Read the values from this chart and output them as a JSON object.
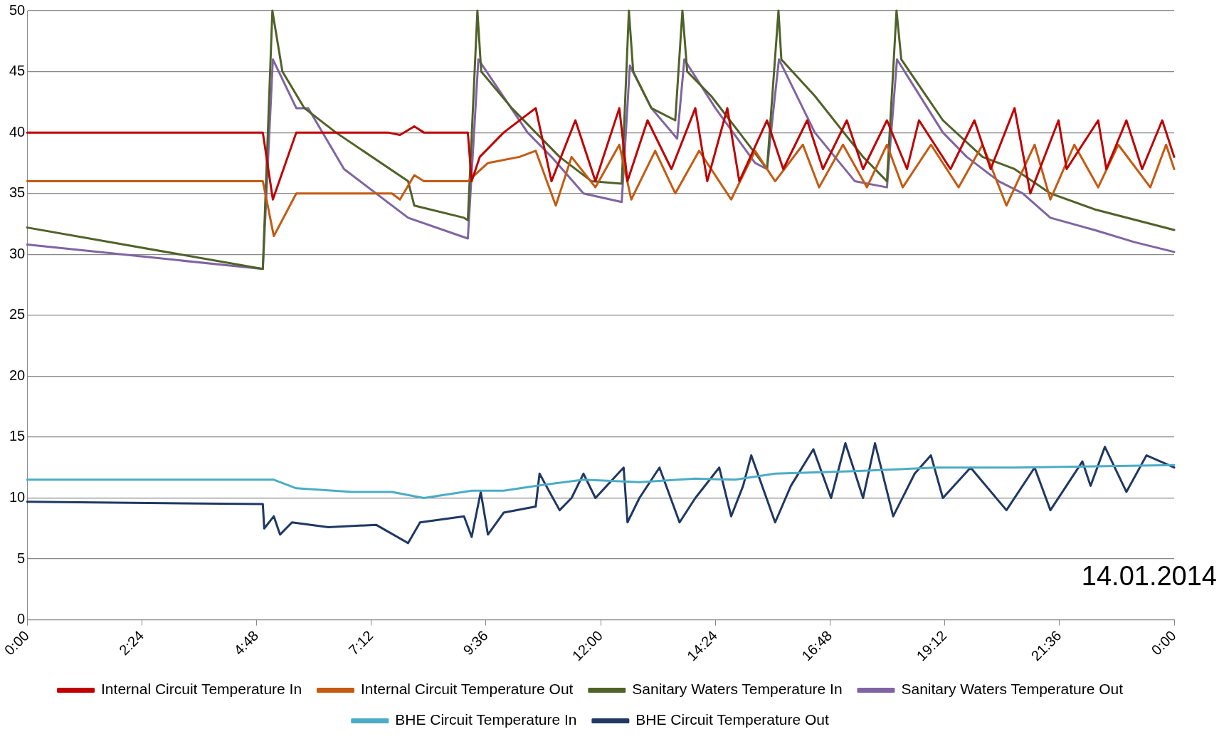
{
  "chart_data": {
    "type": "line",
    "annotations": [
      "14.01.2014"
    ],
    "xlim": [
      0,
      24
    ],
    "xticks": [
      {
        "value": 0,
        "label": "0:00"
      },
      {
        "value": 2.4,
        "label": "2:24"
      },
      {
        "value": 4.8,
        "label": "4:48"
      },
      {
        "value": 7.2,
        "label": "7:12"
      },
      {
        "value": 9.6,
        "label": "9:36"
      },
      {
        "value": 12,
        "label": "12:00"
      },
      {
        "value": 14.4,
        "label": "14:24"
      },
      {
        "value": 16.8,
        "label": "16:48"
      },
      {
        "value": 19.2,
        "label": "19:12"
      },
      {
        "value": 21.6,
        "label": "21:36"
      },
      {
        "value": 24,
        "label": "0:00"
      }
    ],
    "ylim": [
      0,
      50
    ],
    "yticks": [
      0,
      5,
      10,
      15,
      20,
      25,
      30,
      35,
      40,
      45,
      50
    ],
    "grid": "y",
    "legend": "bottom",
    "series": [
      {
        "name": "Internal Circuit Temperature In",
        "color": "#c00000",
        "x": [
          0,
          4.93,
          5.14,
          5.63,
          7.55,
          7.8,
          8.1,
          8.3,
          9.22,
          9.3,
          9.47,
          9.97,
          10.64,
          10.97,
          11.47,
          11.89,
          12.39,
          12.56,
          12.98,
          13.48,
          13.98,
          14.23,
          14.65,
          14.9,
          15.48,
          15.82,
          16.32,
          16.65,
          17.15,
          17.49,
          17.99,
          18.41,
          18.66,
          19.32,
          19.82,
          20.16,
          20.66,
          20.99,
          21.58,
          21.75,
          22.41,
          22.58,
          23,
          23.33,
          23.75,
          24
        ],
        "values": [
          40,
          40,
          34.5,
          40,
          40,
          39.8,
          40.5,
          40,
          40,
          36,
          38,
          40,
          42,
          36,
          41,
          36,
          42,
          36,
          41,
          37,
          42,
          36,
          42,
          36,
          41,
          37,
          41,
          37,
          41,
          37,
          41,
          37,
          41,
          37,
          41,
          37,
          42,
          35,
          41,
          37,
          41,
          37,
          41,
          37,
          41,
          38
        ]
      },
      {
        "name": "Internal Circuit Temperature Out",
        "color": "#c55a11",
        "x": [
          0,
          4.93,
          5.16,
          5.63,
          7.63,
          7.8,
          8.1,
          8.3,
          9.22,
          9.64,
          10.3,
          10.64,
          11.06,
          11.39,
          11.89,
          12.39,
          12.64,
          13.14,
          13.56,
          14.06,
          14.73,
          15.23,
          15.65,
          16.23,
          16.57,
          17.07,
          17.57,
          17.99,
          18.32,
          18.91,
          19.49,
          19.99,
          20.49,
          21.08,
          21.41,
          21.91,
          22.41,
          22.83,
          23.5,
          23.83,
          24
        ],
        "values": [
          36,
          36,
          31.5,
          35,
          35,
          34.5,
          36.5,
          36,
          36,
          37.5,
          38,
          38.5,
          34,
          38,
          35.5,
          39,
          34.5,
          38.5,
          35,
          38.5,
          34.5,
          38.5,
          36,
          39,
          35.5,
          39,
          35.5,
          39,
          35.5,
          39,
          35.5,
          39,
          34,
          39,
          34.5,
          39,
          35.5,
          39,
          35.5,
          39,
          37
        ]
      },
      {
        "name": "Sanitary Waters Temperature In",
        "color": "#4f6228",
        "x": [
          0,
          4.93,
          5.13,
          5.34,
          5.8,
          6.46,
          7.97,
          8.1,
          9.14,
          9.22,
          9.42,
          9.5,
          10.14,
          11.14,
          11.81,
          12.44,
          12.59,
          12.68,
          13.06,
          13.56,
          13.71,
          13.81,
          14.31,
          14.9,
          15.48,
          15.72,
          15.78,
          16.48,
          17.49,
          17.99,
          18.19,
          18.29,
          19.16,
          19.99,
          20.66,
          21.41,
          22.33,
          24
        ],
        "values": [
          32.2,
          28.8,
          50,
          45,
          42,
          40,
          36,
          34,
          33,
          32.8,
          50,
          45,
          42,
          38,
          36,
          35.8,
          50,
          45,
          42,
          41,
          50,
          45,
          43,
          40,
          37,
          50,
          46,
          43,
          38,
          36,
          50,
          46,
          41,
          38,
          37,
          35,
          33.7,
          32
        ]
      },
      {
        "name": "Sanitary Waters Temperature Out",
        "color": "#8064a2",
        "x": [
          0,
          4.93,
          5.14,
          5.63,
          5.88,
          6.63,
          7.97,
          9.22,
          9.44,
          10.47,
          10.97,
          11.64,
          12.44,
          12.61,
          13.06,
          13.6,
          13.75,
          14.4,
          15.23,
          15.48,
          15.73,
          16.48,
          17.32,
          17.99,
          18.2,
          19.16,
          19.66,
          20.33,
          20.83,
          21.41,
          22.33,
          23.17,
          24
        ],
        "values": [
          30.8,
          28.8,
          46,
          42,
          42,
          37,
          33,
          31.3,
          46,
          40,
          38,
          35,
          34.3,
          45.5,
          42,
          39.5,
          46,
          42,
          37.5,
          37,
          46,
          40,
          36,
          35.5,
          46,
          40,
          38,
          36,
          35,
          33,
          32,
          31,
          30.2
        ]
      },
      {
        "name": "BHE Circuit Temperature In",
        "color": "#4bacc6",
        "x": [
          0,
          5.16,
          5.63,
          6.8,
          7.63,
          8.3,
          9.3,
          9.97,
          10.64,
          11.64,
          12.81,
          13.98,
          14.81,
          15.65,
          17.32,
          18.99,
          20.66,
          24
        ],
        "values": [
          11.5,
          11.5,
          10.8,
          10.5,
          10.5,
          10,
          10.6,
          10.6,
          11,
          11.5,
          11.3,
          11.6,
          11.5,
          12,
          12.2,
          12.5,
          12.5,
          12.7
        ]
      },
      {
        "name": "BHE Circuit Temperature Out",
        "color": "#1f3864",
        "x": [
          0,
          4.93,
          4.96,
          5.16,
          5.29,
          5.54,
          6.3,
          7.3,
          7.97,
          8.22,
          9.14,
          9.3,
          9.49,
          9.64,
          9.97,
          10.64,
          10.72,
          11.14,
          11.39,
          11.64,
          11.89,
          12.48,
          12.56,
          12.81,
          13.23,
          13.65,
          13.98,
          14.48,
          14.73,
          14.98,
          15.15,
          15.65,
          15.98,
          16.45,
          16.82,
          17.12,
          17.49,
          17.74,
          18.12,
          18.57,
          18.91,
          19.16,
          19.74,
          20.49,
          21.08,
          21.41,
          22.08,
          22.25,
          22.55,
          23,
          23.42,
          24
        ],
        "values": [
          9.7,
          9.5,
          7.5,
          8.5,
          7,
          8,
          7.6,
          7.8,
          6.3,
          8,
          8.5,
          6.8,
          10.5,
          7,
          8.8,
          9.3,
          12,
          9,
          10,
          12,
          10,
          12.5,
          8,
          10,
          12.5,
          8,
          10,
          12.5,
          8.5,
          11,
          13.5,
          8,
          11,
          14,
          10,
          14.5,
          10,
          14.5,
          8.5,
          12,
          13.5,
          10,
          12.5,
          9,
          12.5,
          9,
          13,
          11,
          14.2,
          10.5,
          13.5,
          12.5
        ]
      }
    ]
  }
}
